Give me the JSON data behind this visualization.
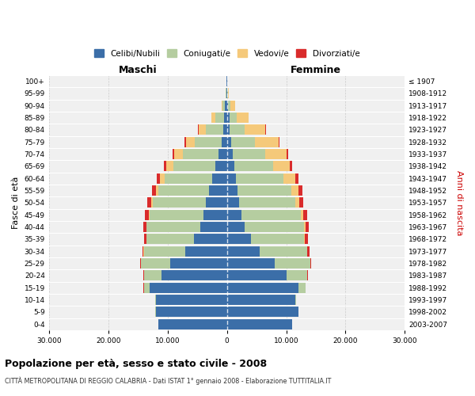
{
  "age_groups": [
    "0-4",
    "5-9",
    "10-14",
    "15-19",
    "20-24",
    "25-29",
    "30-34",
    "35-39",
    "40-44",
    "45-49",
    "50-54",
    "55-59",
    "60-64",
    "65-69",
    "70-74",
    "75-79",
    "80-84",
    "85-89",
    "90-94",
    "95-99",
    "100+"
  ],
  "birth_years": [
    "2003-2007",
    "1998-2002",
    "1993-1997",
    "1988-1992",
    "1983-1987",
    "1978-1982",
    "1973-1977",
    "1968-1972",
    "1963-1967",
    "1958-1962",
    "1953-1957",
    "1948-1952",
    "1943-1947",
    "1938-1942",
    "1933-1937",
    "1928-1932",
    "1923-1927",
    "1918-1922",
    "1913-1917",
    "1908-1912",
    "≤ 1907"
  ],
  "male_celibi": [
    11500,
    12000,
    12000,
    13000,
    11000,
    9500,
    7000,
    5500,
    4500,
    4000,
    3500,
    3000,
    2500,
    2000,
    1400,
    900,
    600,
    500,
    300,
    100,
    50
  ],
  "male_coniugati": [
    30,
    50,
    100,
    1000,
    3000,
    5000,
    7000,
    8000,
    9000,
    9000,
    9000,
    8500,
    8000,
    7000,
    6000,
    4500,
    3000,
    1500,
    400,
    100,
    50
  ],
  "male_vedovi": [
    1,
    1,
    2,
    5,
    5,
    10,
    20,
    50,
    100,
    150,
    300,
    500,
    800,
    1200,
    1500,
    1500,
    1200,
    600,
    200,
    50,
    10
  ],
  "male_divorziati": [
    5,
    5,
    10,
    30,
    80,
    150,
    250,
    400,
    500,
    600,
    600,
    600,
    500,
    400,
    300,
    200,
    100,
    50,
    20,
    10,
    5
  ],
  "female_celibi": [
    11000,
    12000,
    11500,
    12000,
    10000,
    8000,
    5500,
    4000,
    3000,
    2500,
    2000,
    1800,
    1500,
    1300,
    1000,
    700,
    500,
    400,
    250,
    100,
    50
  ],
  "female_coniugati": [
    40,
    60,
    150,
    1200,
    3500,
    6000,
    8000,
    9000,
    10000,
    10000,
    9500,
    9000,
    8000,
    6500,
    5500,
    4000,
    2500,
    1200,
    350,
    80,
    30
  ],
  "female_vedovi": [
    1,
    1,
    2,
    5,
    10,
    20,
    50,
    100,
    200,
    350,
    700,
    1200,
    2000,
    2800,
    3500,
    4000,
    3500,
    2000,
    800,
    200,
    30
  ],
  "female_divorziati": [
    3,
    5,
    10,
    40,
    100,
    200,
    350,
    500,
    600,
    700,
    700,
    700,
    600,
    400,
    300,
    200,
    100,
    60,
    20,
    10,
    3
  ],
  "colors": {
    "celibi": "#3b6ea8",
    "coniugati": "#b5cda0",
    "vedovi": "#f5c97a",
    "divorziati": "#d92b2b"
  },
  "title": "Popolazione per età, sesso e stato civile - 2008",
  "subtitle": "CITTÀ METROPOLITANA DI REGGIO CALABRIA - Dati ISTAT 1° gennaio 2008 - Elaborazione TUTTITALIA.IT",
  "xlabel_left": "Maschi",
  "xlabel_right": "Femmine",
  "ylabel_left": "Fasce di età",
  "ylabel_right": "Anni di nascita",
  "xlim": 30000,
  "xticks": [
    -30000,
    -20000,
    -10000,
    0,
    10000,
    20000,
    30000
  ],
  "xticklabels": [
    "30.000",
    "20.000",
    "10.000",
    "0",
    "10.000",
    "20.000",
    "30.000"
  ],
  "bg_color": "#f0f0f0",
  "grid_color": "#cccccc"
}
